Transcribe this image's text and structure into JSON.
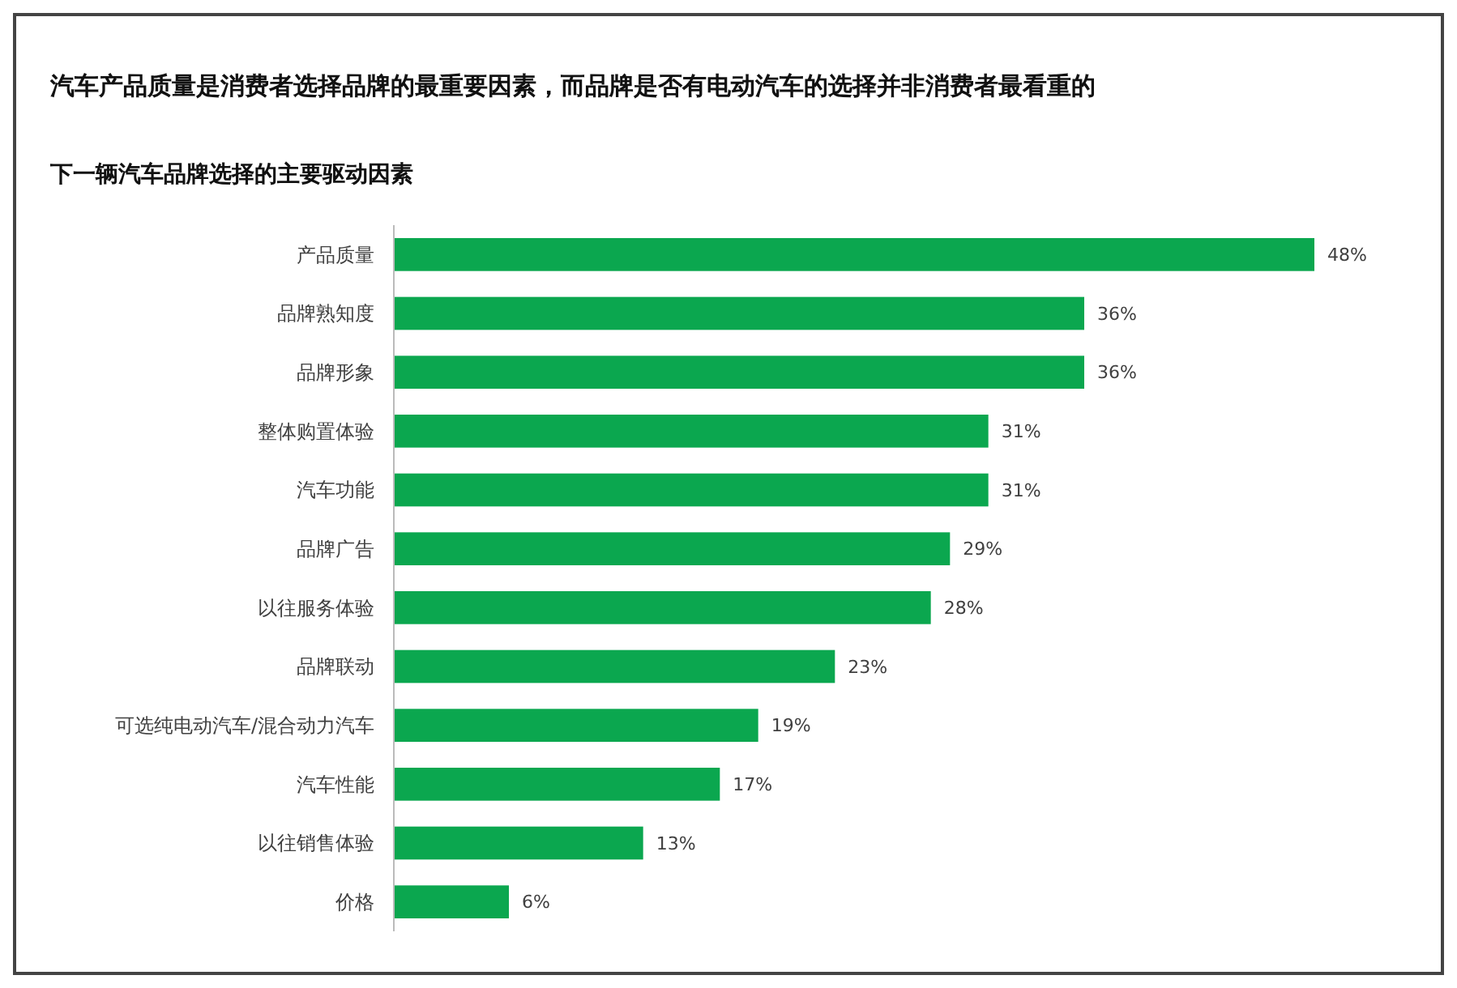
{
  "chart_data": {
    "type": "bar",
    "orientation": "horizontal",
    "title": "汽车产品质量是消费者选择品牌的最重要因素，而品牌是否有电动汽车的选择并非消费者最看重的",
    "subtitle": "下一辆汽车品牌选择的主要驱动因素",
    "categories": [
      "产品质量",
      "品牌熟知度",
      "品牌形象",
      "整体购置体验",
      "汽车功能",
      "品牌广告",
      "以往服务体验",
      "品牌联动",
      "可选纯电动汽车/混合动力汽车",
      "汽车性能",
      "以往销售体验",
      "价格"
    ],
    "values": [
      48,
      36,
      36,
      31,
      31,
      29,
      28,
      23,
      19,
      17,
      13,
      6
    ],
    "value_labels": [
      "48%",
      "36%",
      "36%",
      "31%",
      "31%",
      "29%",
      "28%",
      "23%",
      "19%",
      "17%",
      "13%",
      "6%"
    ],
    "color": "#0ba74f",
    "grid": false
  }
}
